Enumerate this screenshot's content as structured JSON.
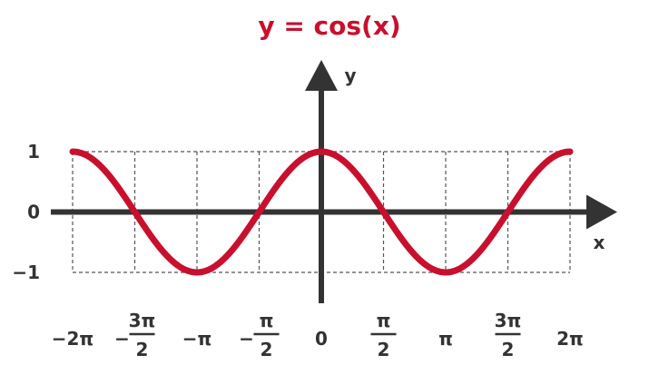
{
  "chart_data": {
    "type": "line",
    "title": "y = cos(x)",
    "xlabel": "x",
    "ylabel": "y",
    "xlim": [
      -6.2832,
      6.2832
    ],
    "ylim": [
      -1,
      1
    ],
    "grid": true,
    "x_ticks": [
      {
        "value": -6.2832,
        "label": "−2π"
      },
      {
        "value": -4.7124,
        "numerator": "3π",
        "denominator": "2",
        "sign": "−"
      },
      {
        "value": -3.1416,
        "label": "−π"
      },
      {
        "value": -1.5708,
        "numerator": "π",
        "denominator": "2",
        "sign": "−"
      },
      {
        "value": 0,
        "label": "0"
      },
      {
        "value": 1.5708,
        "numerator": "π",
        "denominator": "2",
        "sign": ""
      },
      {
        "value": 3.1416,
        "label": "π"
      },
      {
        "value": 4.7124,
        "numerator": "3π",
        "denominator": "2",
        "sign": ""
      },
      {
        "value": 6.2832,
        "label": "2π"
      }
    ],
    "y_ticks": [
      {
        "value": 1,
        "label": "1"
      },
      {
        "value": 0,
        "label": "0"
      },
      {
        "value": -1,
        "label": "−1"
      }
    ],
    "series": [
      {
        "x": [
          -6.2832,
          -5.4978,
          -4.7124,
          -3.927,
          -3.1416,
          -2.3562,
          -1.5708,
          -0.7854,
          0,
          0.7854,
          1.5708,
          2.3562,
          3.1416,
          3.927,
          4.7124,
          5.4978,
          6.2832
        ],
        "values": [
          1,
          0.7071,
          0,
          -0.7071,
          -1,
          -0.7071,
          0,
          0.7071,
          1,
          0.7071,
          0,
          -0.7071,
          -1,
          -0.7071,
          0,
          0.7071,
          1
        ]
      }
    ],
    "colors": {
      "curve": "#c8102e",
      "axis": "#333333",
      "grid": "#555555",
      "title": "#c8102e"
    }
  }
}
